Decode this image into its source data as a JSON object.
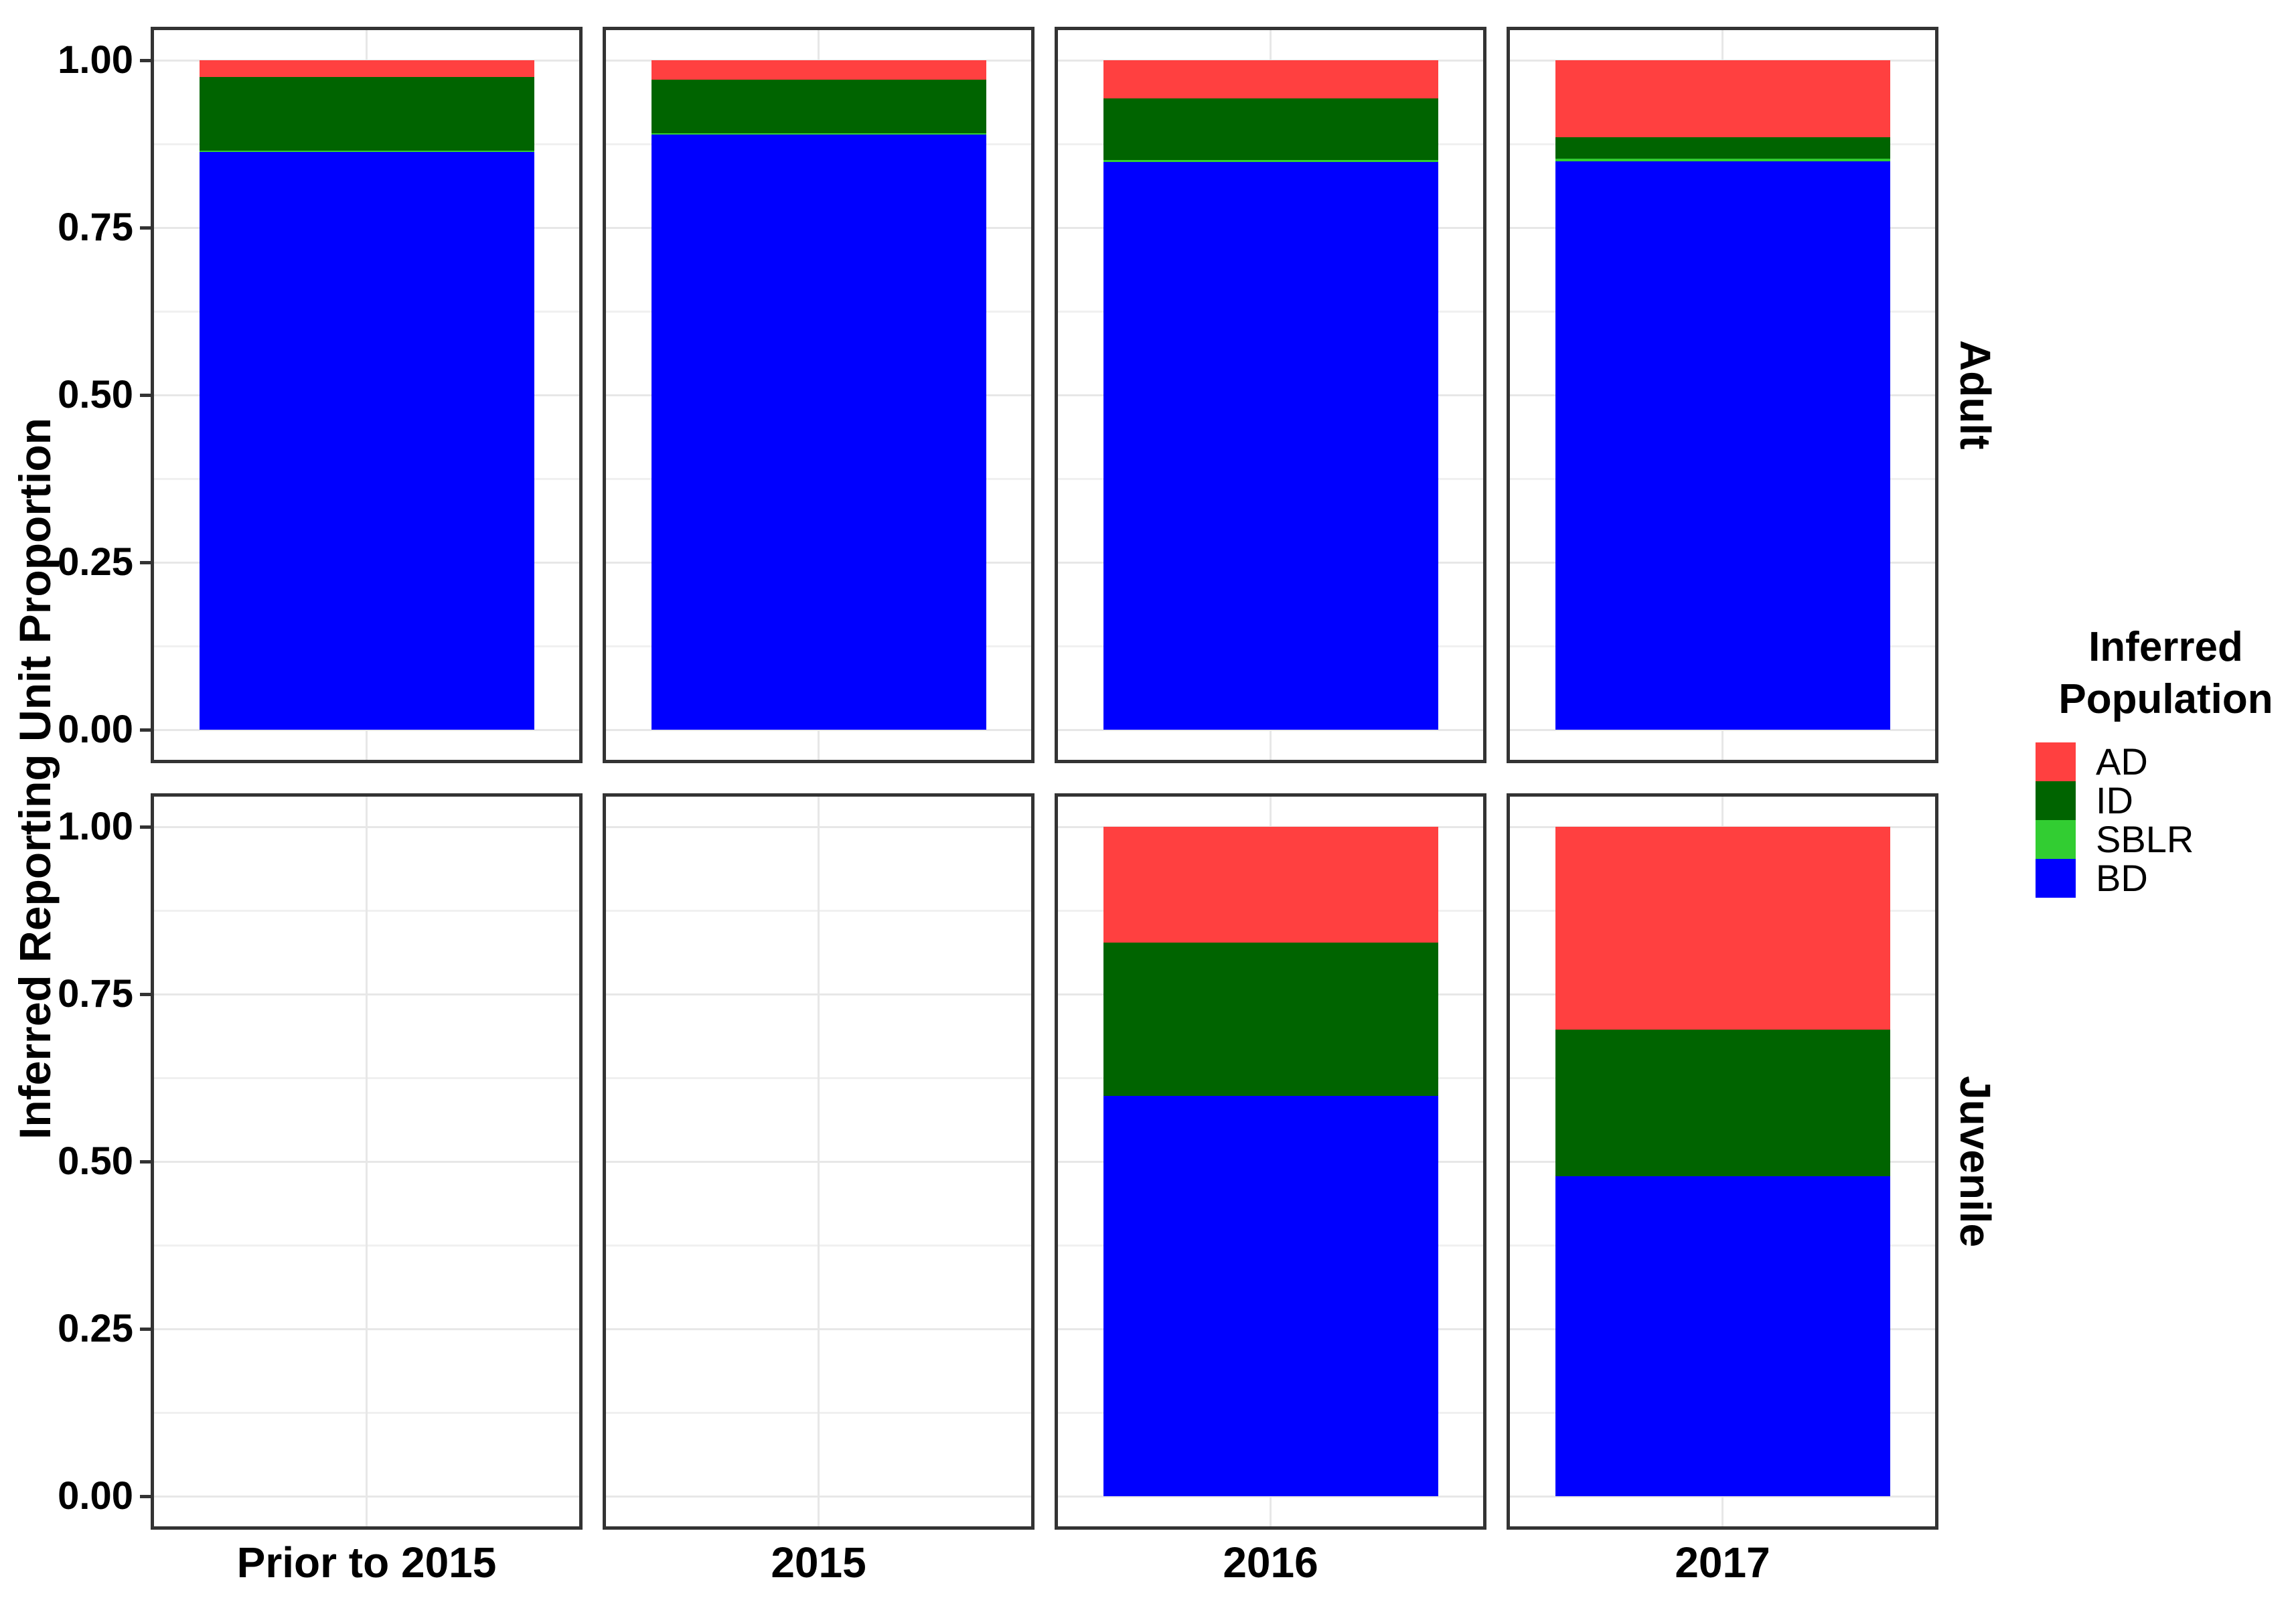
{
  "figure": {
    "y_axis_title": "Inferred Reporting Unit Proportion",
    "y_tick_labels": [
      "1.00",
      "0.75",
      "0.50",
      "0.25",
      "0.00"
    ],
    "x_labels": [
      "Prior to 2015",
      "2015",
      "2016",
      "2017"
    ],
    "facet_row_labels": [
      "Adult",
      "Juvenile"
    ]
  },
  "legend": {
    "title_lines": [
      "Inferred",
      "Population"
    ],
    "entries": [
      {
        "label": "AD",
        "color": "#FF4040"
      },
      {
        "label": "ID",
        "color": "#006400"
      },
      {
        "label": "SBLR",
        "color": "#32CD32"
      },
      {
        "label": "BD",
        "color": "#0000FF"
      }
    ]
  },
  "colors": {
    "panel_border": "#333333",
    "grid_major": "#E7E7E7",
    "grid_minor": "#F0F0F0",
    "tick": "#333333",
    "text": "#000000",
    "background": "#FFFFFF"
  },
  "chart_data": {
    "type": "bar",
    "stacked": true,
    "title": "",
    "xlabel": "",
    "ylabel": "Inferred Reporting Unit Proportion",
    "ylim": [
      0,
      1
    ],
    "y_major_ticks": [
      0,
      0.25,
      0.5,
      0.75,
      1.0
    ],
    "y_minor_ticks": [
      0.125,
      0.375,
      0.625,
      0.875
    ],
    "grid": true,
    "legend_position": "right",
    "legend_title": "Inferred Population",
    "facet_rows": [
      "Adult",
      "Juvenile"
    ],
    "categories": [
      "Prior to 2015",
      "2015",
      "2016",
      "2017"
    ],
    "stack_order_bottom_to_top": [
      "BD",
      "SBLR",
      "ID",
      "AD"
    ],
    "series_colors": {
      "BD": "#0000FF",
      "SBLR": "#32CD32",
      "ID": "#006400",
      "AD": "#FF4040"
    },
    "facets": [
      {
        "row": "Adult",
        "bars": [
          {
            "category": "Prior to 2015",
            "values": {
              "BD": 0.863,
              "SBLR": 0.002,
              "ID": 0.11,
              "AD": 0.025
            }
          },
          {
            "category": "2015",
            "values": {
              "BD": 0.889,
              "SBLR": 0.002,
              "ID": 0.08,
              "AD": 0.029
            }
          },
          {
            "category": "2016",
            "values": {
              "BD": 0.848,
              "SBLR": 0.003,
              "ID": 0.092,
              "AD": 0.057
            }
          },
          {
            "category": "2017",
            "values": {
              "BD": 0.849,
              "SBLR": 0.004,
              "ID": 0.032,
              "AD": 0.115
            }
          }
        ]
      },
      {
        "row": "Juvenile",
        "bars": [
          {
            "category": "2016",
            "values": {
              "BD": 0.598,
              "SBLR": 0.0,
              "ID": 0.229,
              "AD": 0.173
            }
          },
          {
            "category": "2017",
            "values": {
              "BD": 0.478,
              "SBLR": 0.0,
              "ID": 0.219,
              "AD": 0.303
            }
          }
        ]
      }
    ]
  }
}
